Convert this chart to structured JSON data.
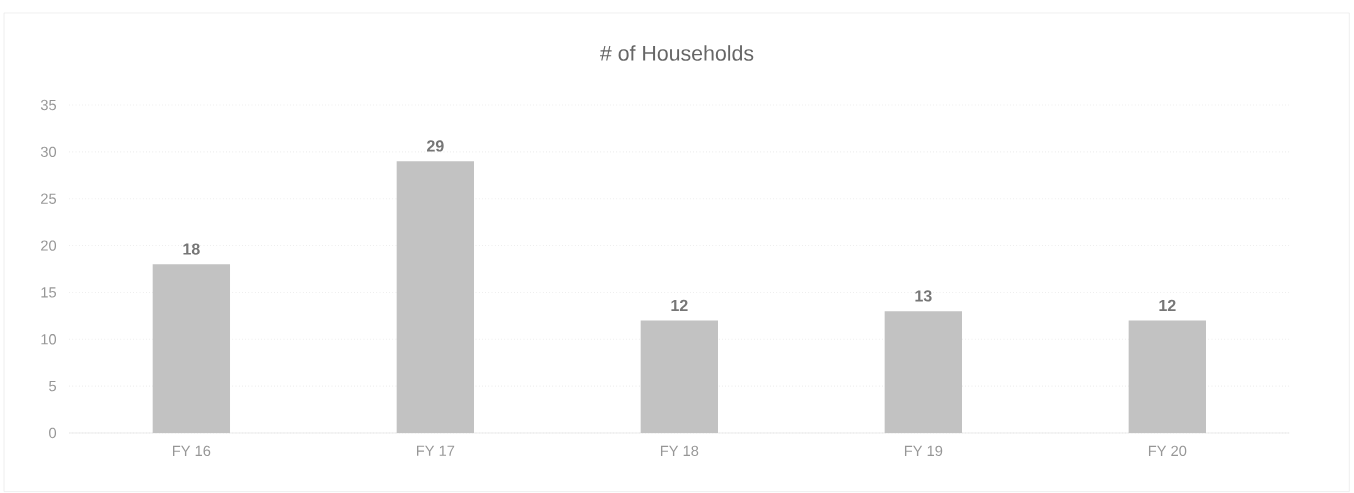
{
  "chart_data": {
    "type": "bar",
    "title": "# of Households",
    "categories": [
      "FY 16",
      "FY 17",
      "FY 18",
      "FY 19",
      "FY 20"
    ],
    "values": [
      18,
      29,
      12,
      13,
      12
    ],
    "color": "#c2c2c2",
    "ylim": [
      0,
      35
    ],
    "yticks": [
      0,
      5,
      10,
      15,
      20,
      25,
      30,
      35
    ],
    "grid": "y",
    "data_labels": true
  }
}
